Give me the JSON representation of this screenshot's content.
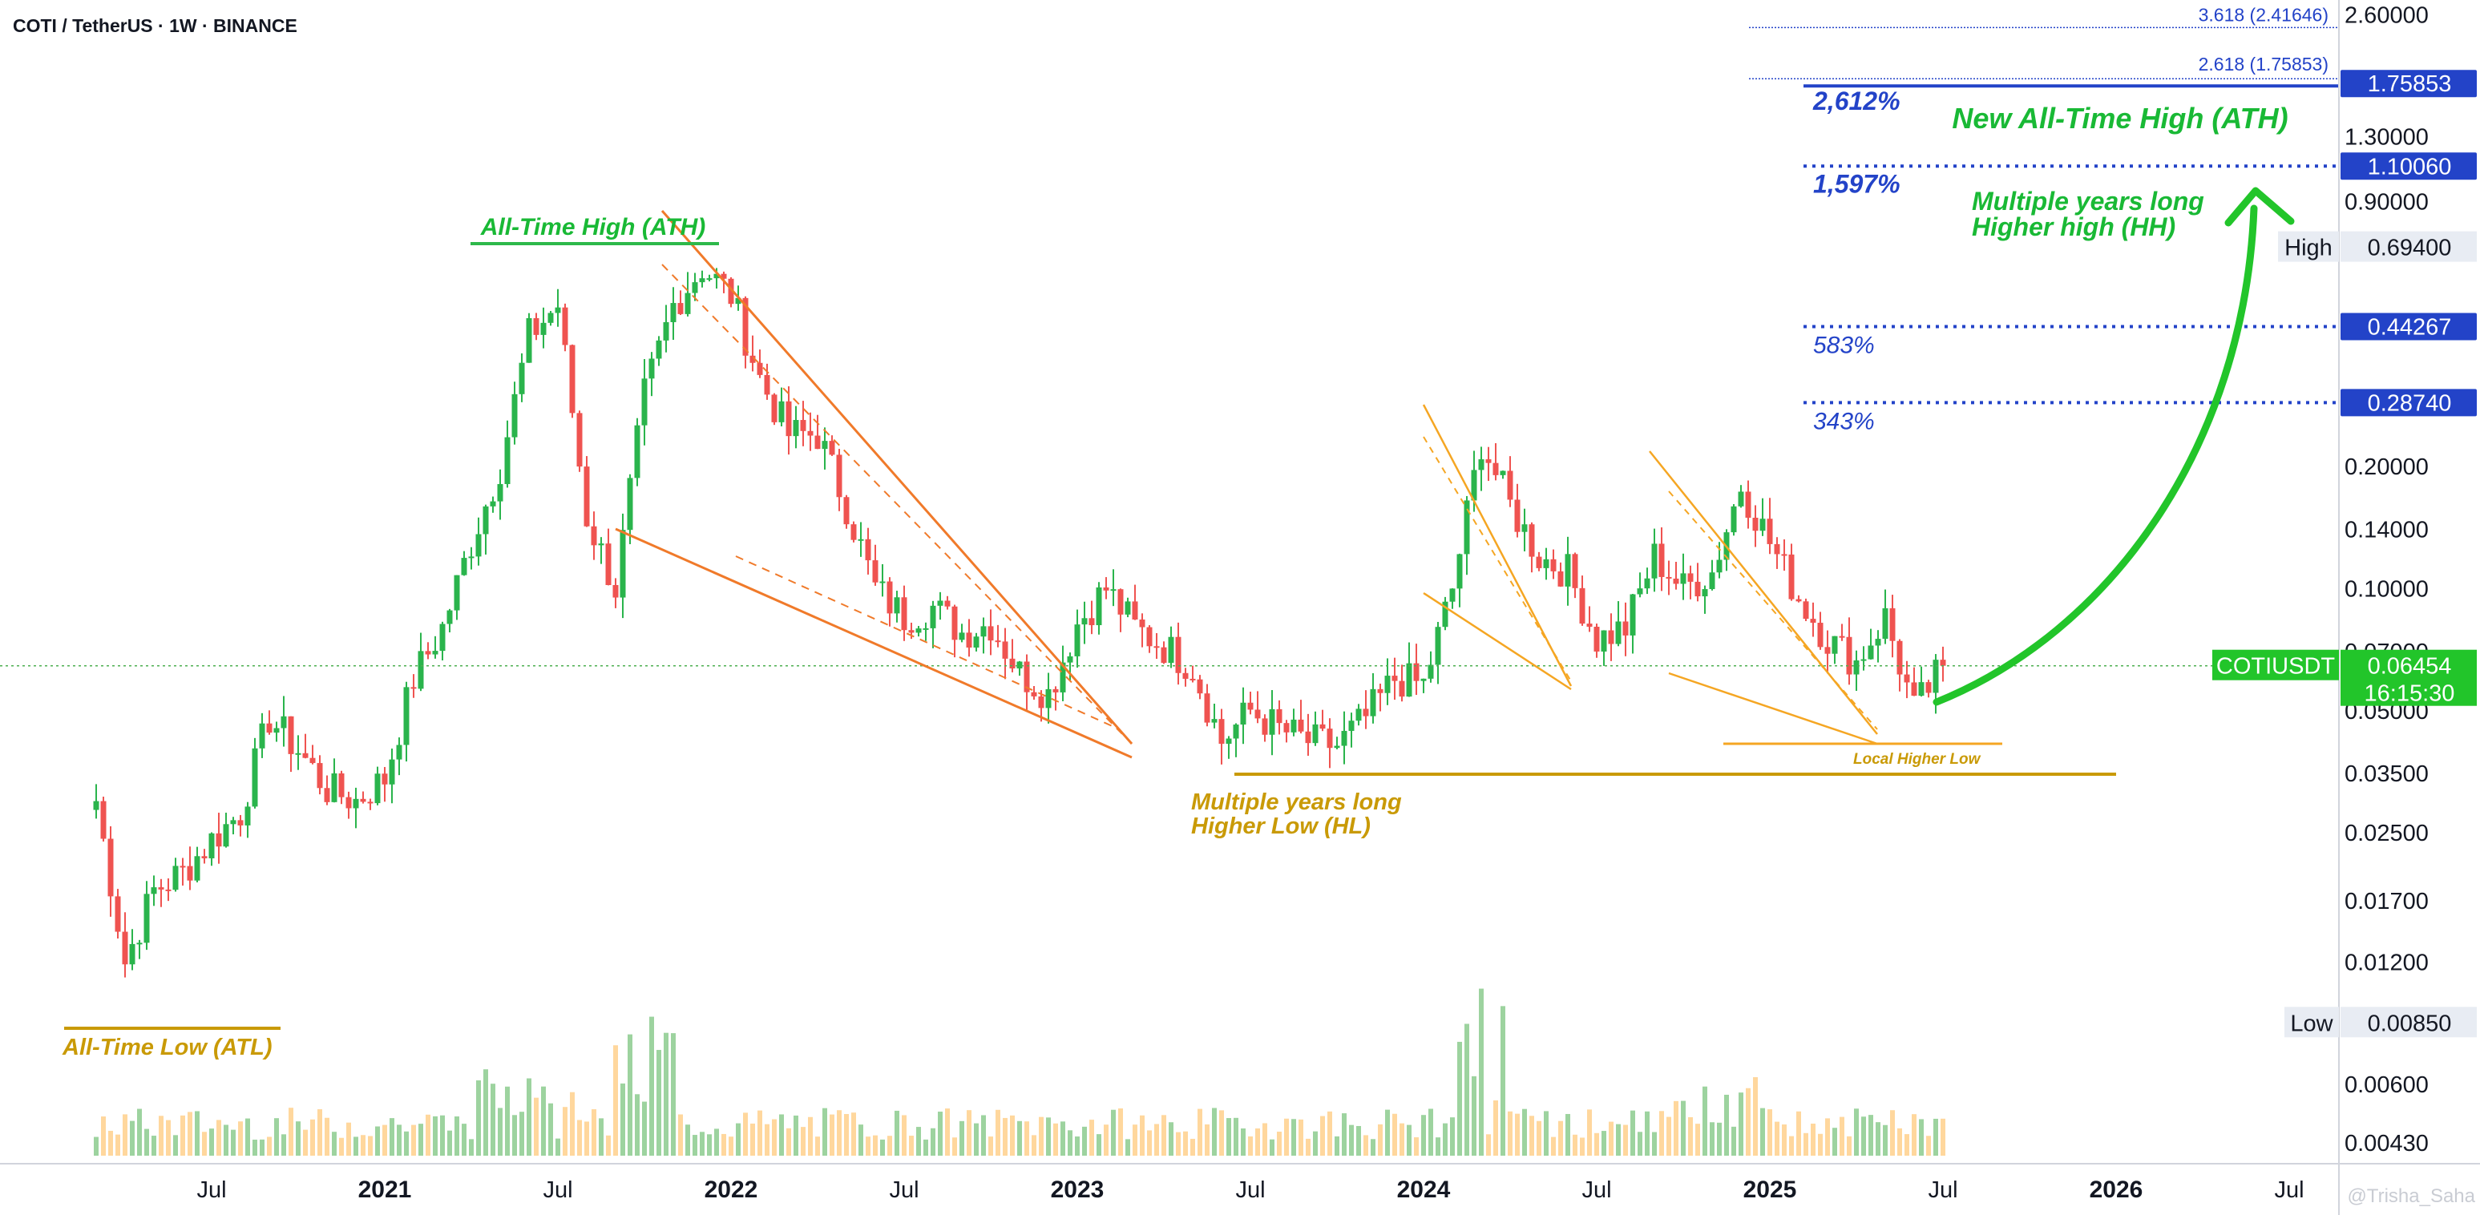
{
  "header": {
    "title": "COTI / TetherUS · 1W · BINANCE"
  },
  "watermark": "@Trisha_Saha",
  "price_axis": {
    "ticks": [
      "2.60000",
      "1.30000",
      "0.90000",
      "0.20000",
      "0.14000",
      "0.10000",
      "0.07000",
      "0.05000",
      "0.03500",
      "0.02500",
      "0.01700",
      "0.01200",
      "0.00600",
      "0.00430"
    ],
    "high_label": "High",
    "high_value": "0.69400",
    "low_label": "Low",
    "low_value": "0.00850",
    "symbol_tag": "COTIUSDT",
    "last_price": "0.06454",
    "countdown": "16:15:30"
  },
  "time_axis": {
    "labels": [
      {
        "text": "Jul",
        "bold": false
      },
      {
        "text": "2021",
        "bold": true
      },
      {
        "text": "Jul",
        "bold": false
      },
      {
        "text": "2022",
        "bold": true
      },
      {
        "text": "Jul",
        "bold": false
      },
      {
        "text": "2023",
        "bold": true
      },
      {
        "text": "Jul",
        "bold": false
      },
      {
        "text": "2024",
        "bold": true
      },
      {
        "text": "Jul",
        "bold": false
      },
      {
        "text": "2025",
        "bold": true
      },
      {
        "text": "Jul",
        "bold": false
      },
      {
        "text": "2026",
        "bold": true
      },
      {
        "text": "Jul",
        "bold": false
      }
    ]
  },
  "colors": {
    "up": "#26a69a",
    "up_bright": "#2ab44c",
    "down": "#ef5350",
    "fib": "#2343c8",
    "green_annot": "#19b935",
    "gold": "#c99a06",
    "channel": "#f07a2a"
  },
  "annotations": {
    "ath": "All-Time High (ATH)",
    "atl": "All-Time Low (ATL)",
    "hl_line1": "Multiple years long",
    "hl_line2": "Higher Low (HL)",
    "local_hl": "Local Higher Low",
    "new_ath": "New All-Time High (ATH)",
    "hh_line1": "Multiple years long",
    "hh_line2": "Higher high (HH)"
  },
  "fib_levels": [
    {
      "label": "3.618 (2.41646)",
      "price": 2.41646
    },
    {
      "label": "2.618 (1.75853)",
      "price": 1.75853,
      "tag": "1.75853",
      "pct": "2,612%"
    },
    {
      "price": 1.1006,
      "tag": "1.10060",
      "pct": "1,597%"
    },
    {
      "price": 0.44267,
      "tag": "0.44267",
      "pct": "583%"
    },
    {
      "price": 0.2874,
      "tag": "0.28740",
      "pct": "343%"
    }
  ],
  "chart_data": {
    "type": "candlestick",
    "title": "COTI / TetherUS · 1W · BINANCE",
    "y_scale": "log",
    "ylim": [
      0.004,
      2.7
    ],
    "x_range": [
      "2020-03",
      "2026-09"
    ],
    "path_dates": [
      "2020-03",
      "2020-04",
      "2020-05",
      "2020-06",
      "2020-07",
      "2020-08",
      "2020-09",
      "2020-10",
      "2020-11",
      "2020-12",
      "2021-01",
      "2021-02",
      "2021-03",
      "2021-04",
      "2021-05",
      "2021-06",
      "2021-07",
      "2021-08",
      "2021-09",
      "2021-10",
      "2021-11",
      "2021-12",
      "2022-01",
      "2022-02",
      "2022-03",
      "2022-04",
      "2022-05",
      "2022-06",
      "2022-07",
      "2022-08",
      "2022-09",
      "2022-10",
      "2022-11",
      "2022-12",
      "2023-01",
      "2023-02",
      "2023-03",
      "2023-04",
      "2023-05",
      "2023-06",
      "2023-07",
      "2023-08",
      "2023-09",
      "2023-10",
      "2023-11",
      "2023-12",
      "2024-01",
      "2024-02",
      "2024-03",
      "2024-04",
      "2024-05",
      "2024-06",
      "2024-07",
      "2024-08",
      "2024-09",
      "2024-10",
      "2024-11",
      "2024-12",
      "2025-01",
      "2025-02",
      "2025-03",
      "2025-04",
      "2025-05",
      "2025-06",
      "2025-07"
    ],
    "path_closes": [
      0.03,
      0.012,
      0.018,
      0.02,
      0.024,
      0.028,
      0.048,
      0.04,
      0.032,
      0.03,
      0.034,
      0.06,
      0.08,
      0.13,
      0.2,
      0.42,
      0.5,
      0.15,
      0.1,
      0.3,
      0.5,
      0.62,
      0.53,
      0.33,
      0.24,
      0.24,
      0.16,
      0.1,
      0.085,
      0.09,
      0.078,
      0.082,
      0.062,
      0.055,
      0.082,
      0.1,
      0.08,
      0.072,
      0.064,
      0.042,
      0.05,
      0.045,
      0.042,
      0.041,
      0.048,
      0.06,
      0.058,
      0.1,
      0.23,
      0.16,
      0.12,
      0.11,
      0.075,
      0.08,
      0.12,
      0.1,
      0.11,
      0.18,
      0.13,
      0.095,
      0.075,
      0.066,
      0.085,
      0.05,
      0.06454
    ],
    "last_price": 0.06454,
    "all_time_high": 0.694,
    "all_time_low": 0.0085,
    "volume_series": "weekly volume histogram, peaks at 2021-10 and 2024-03"
  }
}
